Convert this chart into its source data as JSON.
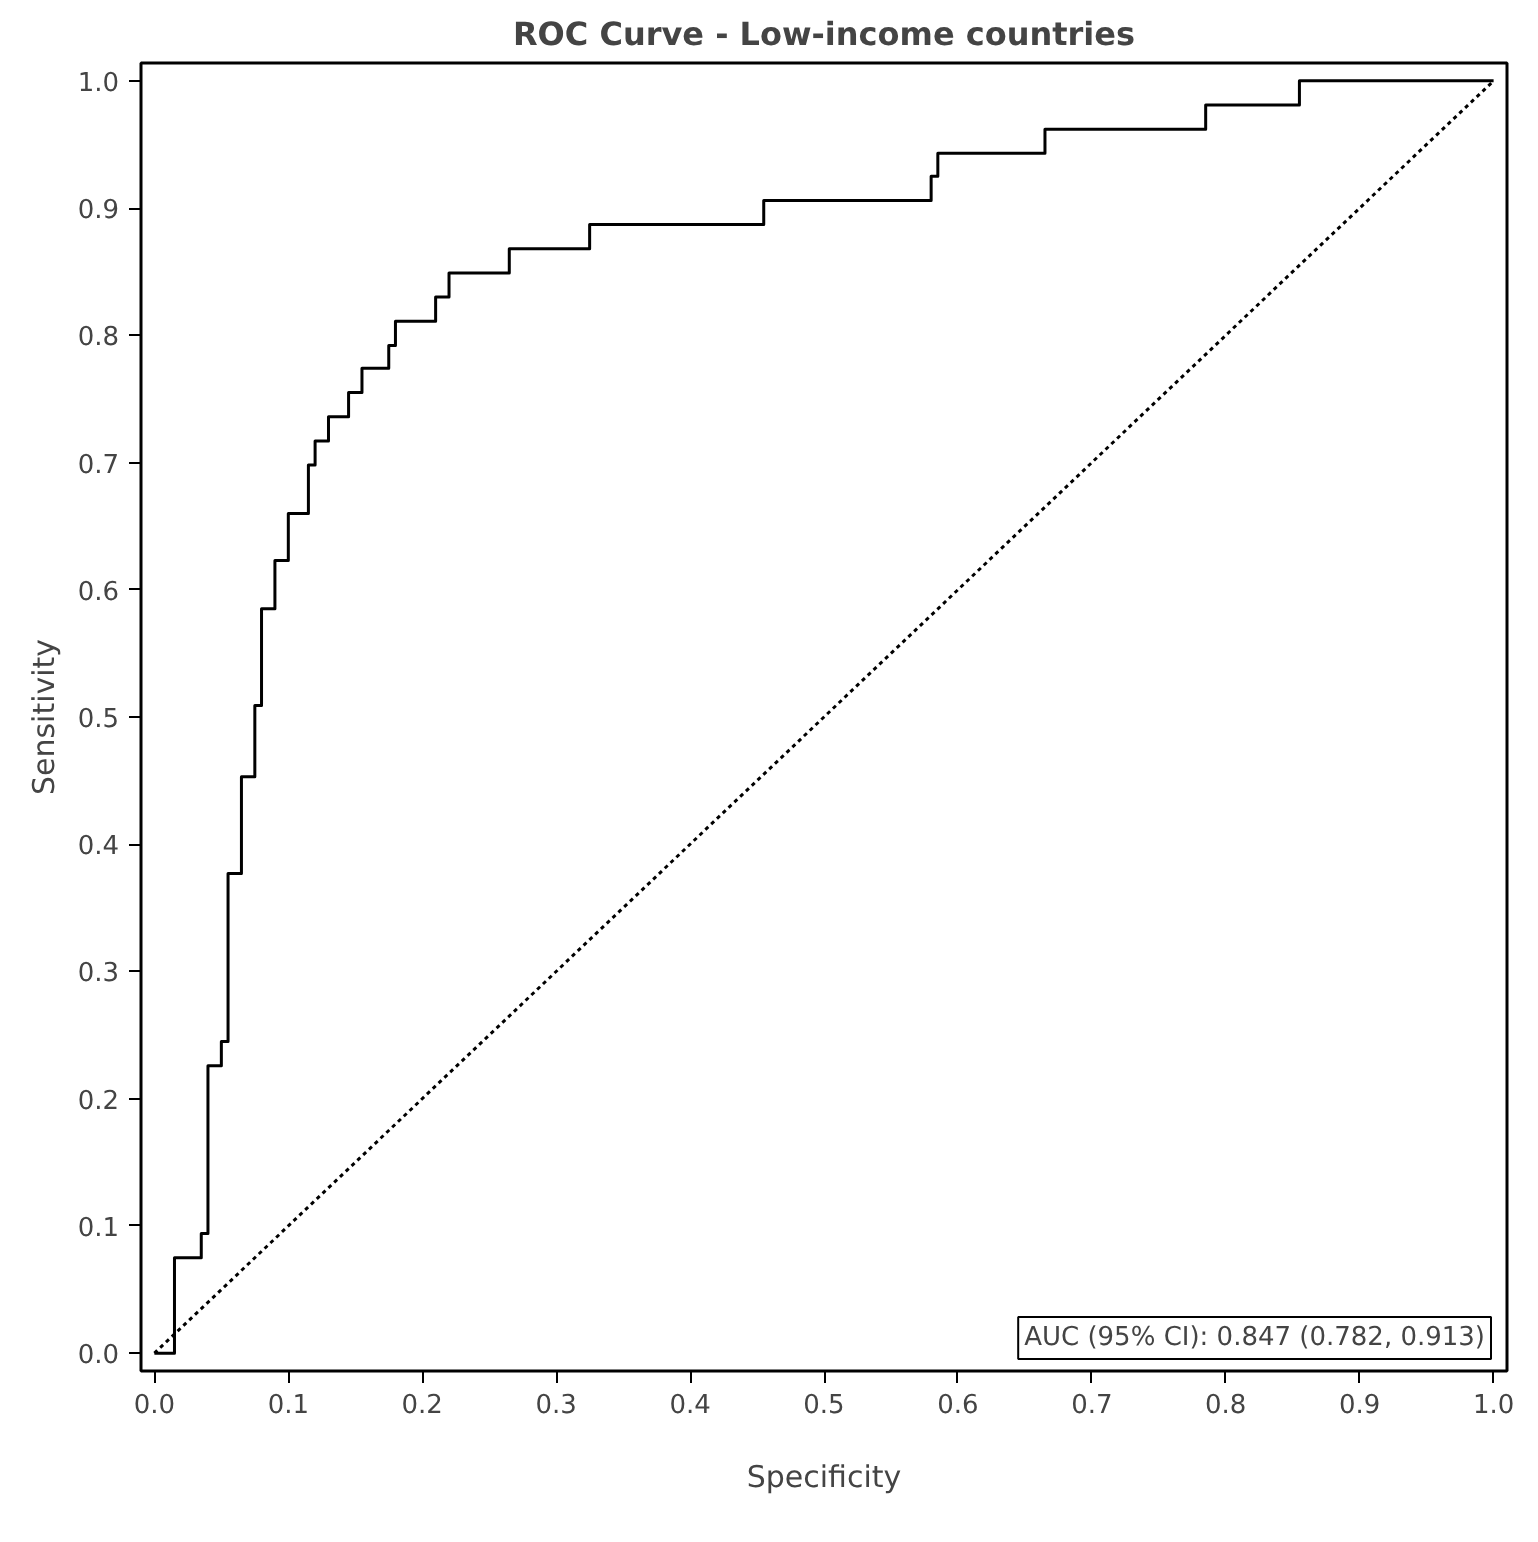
{
  "chart_data": {
    "type": "step",
    "title": "ROC Curve - Low-income countries",
    "xlabel": "Specificity",
    "ylabel": "Sensitivity",
    "xlim": [
      -0.01,
      1.01
    ],
    "ylim": [
      -0.014,
      1.014
    ],
    "xticks": [
      {
        "value": 0,
        "label": "0.0"
      },
      0.1,
      0.2,
      0.3,
      0.4,
      0.5,
      0.6,
      0.7,
      0.8,
      0.9,
      {
        "value": 1,
        "label": "1.0"
      }
    ],
    "yticks": [
      {
        "value": 0,
        "label": "0.0"
      },
      0.1,
      0.2,
      0.3,
      0.4,
      0.5,
      0.6,
      0.7,
      0.8,
      0.9,
      {
        "value": 1,
        "label": "1.0"
      }
    ],
    "grid": false,
    "series": [
      {
        "color": "#000000",
        "line_style": "solid",
        "x": [
          0,
          0.015,
          0.035,
          0.04,
          0.05,
          0.055,
          0.065,
          0.075,
          0.08,
          0.09,
          0.1,
          0.115,
          0.12,
          0.13,
          0.145,
          0.155,
          0.175,
          0.18,
          0.21,
          0.22,
          0.265,
          0.325,
          0.455,
          0.58,
          0.585,
          0.665,
          0.785,
          0.855,
          1.0
        ],
        "values": [
          0,
          0.075,
          0.094,
          0.226,
          0.245,
          0.377,
          0.453,
          0.509,
          0.585,
          0.623,
          0.66,
          0.698,
          0.717,
          0.736,
          0.755,
          0.774,
          0.792,
          0.811,
          0.83,
          0.849,
          0.868,
          0.887,
          0.906,
          0.925,
          0.943,
          0.962,
          0.981,
          1.0,
          1.0
        ]
      },
      {
        "type": "line",
        "color": "#000000",
        "line_style": "dotted",
        "x": [
          0,
          1
        ],
        "values": [
          0,
          1
        ]
      }
    ],
    "annotations": [
      "AUC (95% CI): 0.847 (0.782, 0.913)"
    ]
  }
}
